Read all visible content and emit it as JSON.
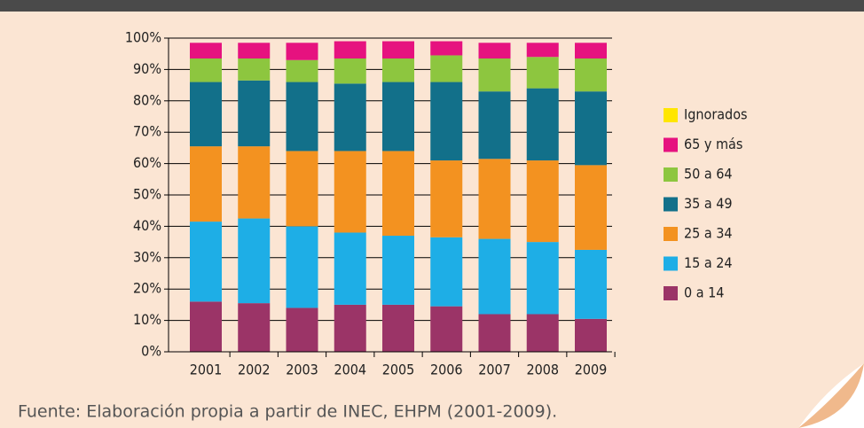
{
  "chart_data": {
    "type": "stacked_bar",
    "source": "Fuente: Elaboración propia a partir de INEC, EHPM (2001-2009).",
    "categories": [
      "2001",
      "2002",
      "2003",
      "2004",
      "2005",
      "2006",
      "2007",
      "2008",
      "2009"
    ],
    "series": [
      {
        "name": "0 a 14",
        "color": "#9b3467",
        "values": [
          16,
          15.5,
          14,
          15,
          15,
          14.5,
          12,
          12,
          10.5
        ]
      },
      {
        "name": "15 a 24",
        "color": "#1eaee6",
        "values": [
          25.5,
          27,
          26,
          23,
          22,
          22,
          24,
          23,
          22
        ]
      },
      {
        "name": "25 a 34",
        "color": "#f39220",
        "values": [
          24,
          23,
          24,
          26,
          27,
          24.5,
          25.5,
          26,
          27
        ]
      },
      {
        "name": "35 a 49",
        "color": "#12708a",
        "values": [
          20.5,
          21,
          22,
          21.5,
          22,
          25,
          21.5,
          23,
          23.5
        ]
      },
      {
        "name": "50 a 64",
        "color": "#8dc63f",
        "values": [
          7.5,
          7,
          7,
          8,
          7.5,
          8.5,
          10.5,
          10,
          10.5
        ]
      },
      {
        "name": "65 y más",
        "color": "#e6127f",
        "values": [
          5,
          5,
          5.5,
          5.5,
          5.5,
          4.5,
          5,
          4.5,
          5
        ]
      },
      {
        "name": "Ignorados",
        "color": "#ffe600",
        "values": [
          0,
          0,
          0,
          0,
          0,
          0,
          0,
          0,
          0
        ]
      }
    ],
    "ylim": [
      0,
      100
    ],
    "yticks": [
      {
        "value": 0,
        "label": "0%"
      },
      {
        "value": 10,
        "label": "10%"
      },
      {
        "value": 20,
        "label": "20%"
      },
      {
        "value": 30,
        "label": "30%"
      },
      {
        "value": 40,
        "label": "40%"
      },
      {
        "value": 50,
        "label": "50%"
      },
      {
        "value": 60,
        "label": "60%"
      },
      {
        "value": 70,
        "label": "70%"
      },
      {
        "value": 80,
        "label": "80%"
      },
      {
        "value": 90,
        "label": "90%"
      },
      {
        "value": 100,
        "label": "100%"
      }
    ],
    "grid": true
  }
}
